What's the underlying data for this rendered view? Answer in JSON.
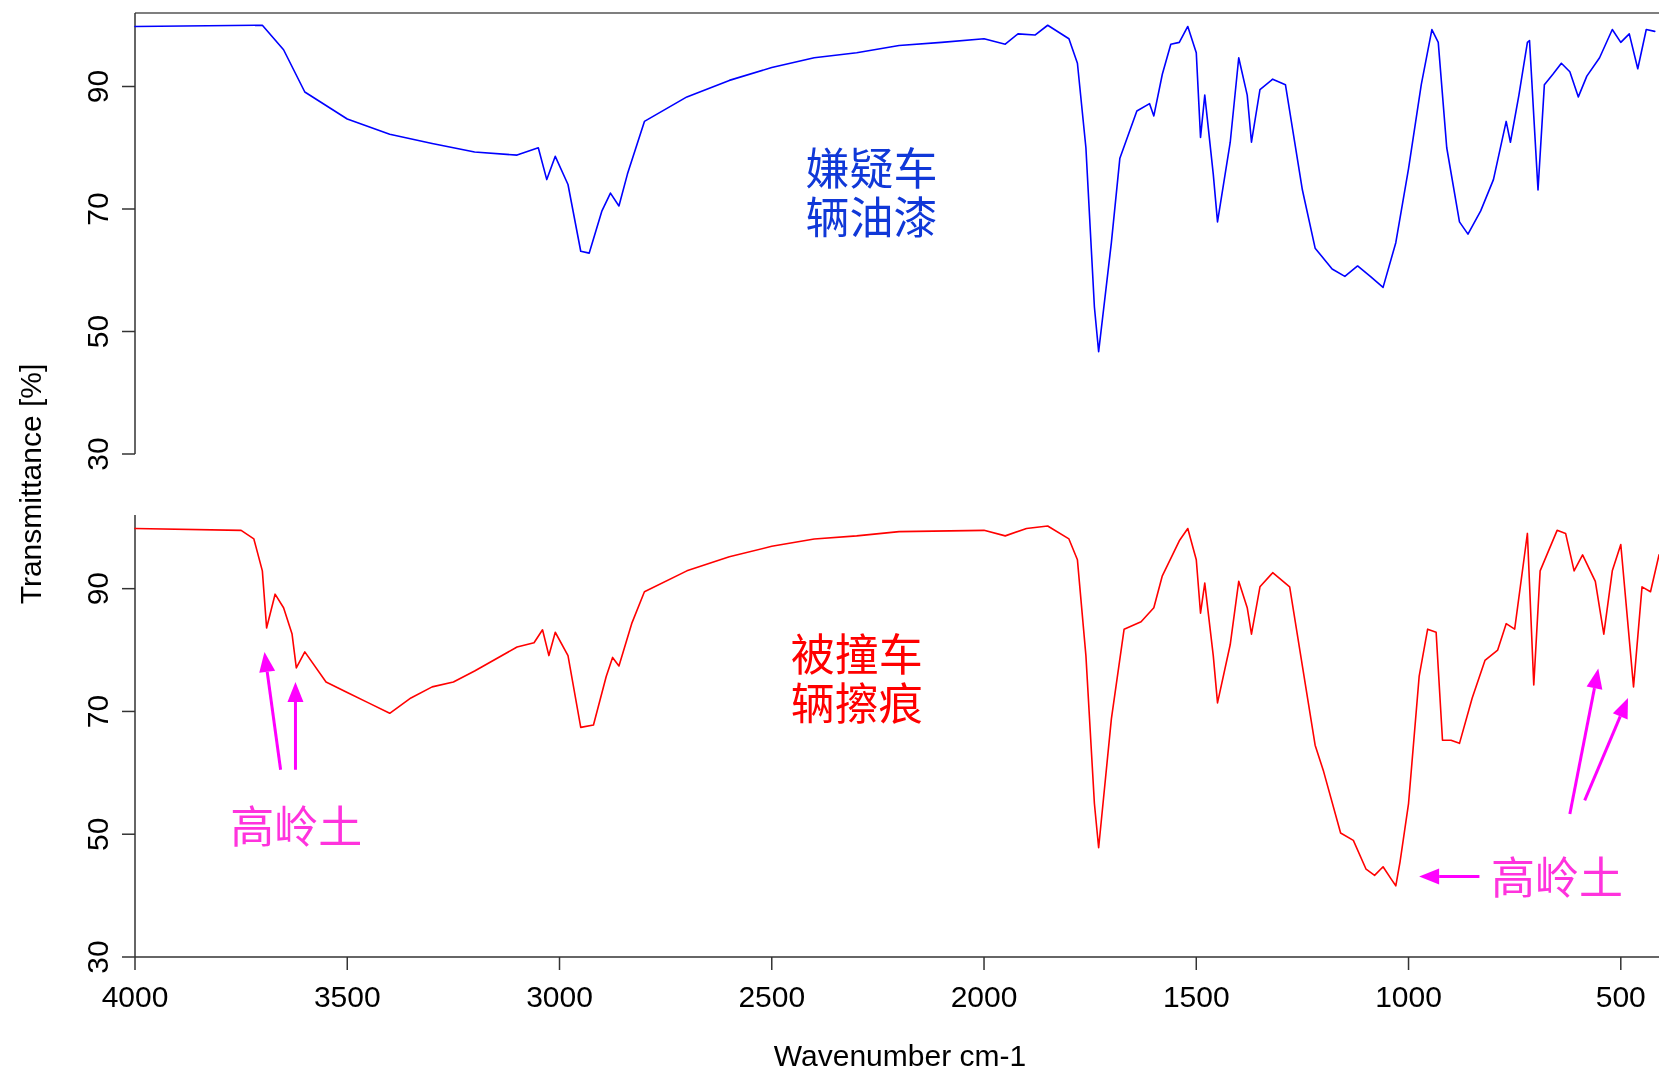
{
  "chart_data": [
    {
      "type": "line",
      "ylabel": "Transmittance [%]",
      "xlim": [
        4000,
        410
      ],
      "ylim": [
        30,
        102
      ],
      "yticks": [
        30,
        50,
        70,
        90
      ],
      "tick_labels": "y",
      "x": [
        4000,
        3700,
        3650,
        3600,
        3500,
        3400,
        3300,
        3200,
        3100,
        3050,
        3030,
        3010,
        2980,
        2950,
        2930,
        2900,
        2880,
        2860,
        2840,
        2800,
        2700,
        2600,
        2500,
        2400,
        2300,
        2200,
        2100,
        2000,
        1950,
        1920,
        1880,
        1850,
        1800,
        1780,
        1760,
        1740,
        1730,
        1700,
        1680,
        1640,
        1610,
        1600,
        1580,
        1560,
        1540,
        1520,
        1500,
        1490,
        1480,
        1460,
        1450,
        1420,
        1400,
        1380,
        1370,
        1350,
        1320,
        1290,
        1250,
        1220,
        1180,
        1150,
        1120,
        1090,
        1060,
        1030,
        1000,
        970,
        945,
        930,
        910,
        880,
        860,
        830,
        800,
        770,
        760,
        740,
        720,
        715,
        705,
        695,
        680,
        660,
        640,
        620,
        600,
        580,
        550,
        520,
        500,
        480,
        460,
        440,
        420
      ],
      "series": [
        {
          "color": "#0000ff",
          "values": [
            99.8,
            100,
            96,
            89.1,
            84.7,
            82.2,
            80.7,
            79.3,
            78.8,
            80.0,
            74.8,
            78.6,
            74,
            63.1,
            62.8,
            69.7,
            72.6,
            70.5,
            75.7,
            84.3,
            88.3,
            91,
            93.1,
            94.7,
            95.5,
            96.7,
            97.2,
            97.8,
            96.9,
            98.6,
            98.4,
            100,
            97.8,
            93.8,
            80,
            54,
            46.7,
            64.5,
            78.3,
            86,
            87.2,
            85.2,
            92,
            96.9,
            97.2,
            99.8,
            95.5,
            81.7,
            88.6,
            75.7,
            67.9,
            80.9,
            94.7,
            88.6,
            80.9,
            89.5,
            91.2,
            90.3,
            73.1,
            63.6,
            60.2,
            59,
            60.7,
            59,
            57.2,
            64.5,
            76.6,
            90.3,
            99.3,
            97.2,
            80,
            67.9,
            65.9,
            69.7,
            74.8,
            84.3,
            80.9,
            88.6,
            97.2,
            97.5,
            85.2,
            73.1,
            90.3,
            92,
            93.8,
            92.4,
            88.3,
            91.7,
            94.7,
            99.3,
            97.2,
            98.6,
            92.9,
            99.3,
            99
          ]
        }
      ],
      "annotations": [
        "嫌疑车辆油漆"
      ]
    },
    {
      "type": "line",
      "xlabel": "Wavenumber cm-1",
      "xlim": [
        4000,
        410
      ],
      "ylim": [
        30,
        102
      ],
      "xticks": [
        4000,
        3500,
        3000,
        2500,
        2000,
        1500,
        1000,
        500
      ],
      "yticks": [
        30,
        50,
        70,
        90
      ],
      "x": [
        4000,
        3750,
        3720,
        3700,
        3690,
        3670,
        3650,
        3630,
        3620,
        3600,
        3550,
        3500,
        3450,
        3400,
        3350,
        3300,
        3250,
        3200,
        3100,
        3060,
        3040,
        3025,
        3010,
        2980,
        2950,
        2920,
        2890,
        2875,
        2860,
        2830,
        2800,
        2700,
        2600,
        2500,
        2400,
        2300,
        2200,
        2000,
        1950,
        1900,
        1850,
        1800,
        1780,
        1760,
        1740,
        1730,
        1700,
        1670,
        1630,
        1600,
        1580,
        1540,
        1520,
        1500,
        1490,
        1480,
        1460,
        1450,
        1420,
        1400,
        1380,
        1370,
        1350,
        1320,
        1280,
        1250,
        1220,
        1200,
        1160,
        1130,
        1100,
        1080,
        1060,
        1040,
        1030,
        1020,
        1000,
        975,
        955,
        935,
        920,
        900,
        880,
        850,
        820,
        790,
        770,
        750,
        720,
        705,
        690,
        650,
        630,
        610,
        590,
        560,
        540,
        520,
        500,
        470,
        450,
        430,
        410
      ],
      "series": [
        {
          "color": "#ff0000",
          "values": [
            99.8,
            99.5,
            98.1,
            92.9,
            83.6,
            89.1,
            86.9,
            82.6,
            77.1,
            79.7,
            74.8,
            73.1,
            71.4,
            69.7,
            72.2,
            74,
            74.8,
            76.6,
            80.5,
            81.2,
            83.3,
            79.1,
            82.9,
            79.1,
            67.4,
            67.8,
            75.7,
            78.8,
            77.4,
            84.3,
            89.5,
            92.9,
            95.2,
            96.9,
            98.1,
            98.6,
            99.3,
            99.5,
            98.6,
            99.8,
            100.2,
            98.1,
            94.7,
            79.1,
            55,
            47.8,
            68.8,
            83.4,
            84.6,
            86.9,
            92.1,
            97.8,
            99.8,
            94.7,
            86,
            90.9,
            79.1,
            71.4,
            80.9,
            91.2,
            86.9,
            82.6,
            90.3,
            92.6,
            90.3,
            77.4,
            64.5,
            60.2,
            50.2,
            49,
            44.3,
            43.3,
            44.7,
            42.6,
            41.6,
            45.5,
            55,
            75.7,
            83.4,
            82.9,
            65.3,
            65.3,
            64.8,
            72.2,
            78.3,
            80,
            84.3,
            83.4,
            99,
            74.3,
            92.9,
            99.5,
            99,
            92.9,
            95.5,
            91.2,
            82.6,
            92.9,
            97.2,
            74,
            90.3,
            89.5,
            95.5
          ]
        }
      ],
      "annotations": [
        "被撞车辆擦痕",
        "高岭土",
        "高岭土"
      ]
    }
  ]
}
